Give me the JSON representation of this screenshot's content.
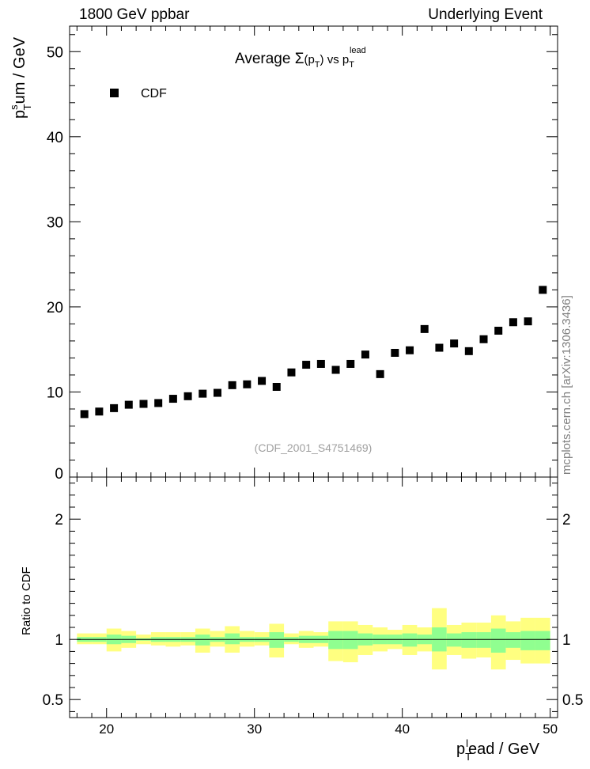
{
  "header": {
    "left": "1800 GeV ppbar",
    "right": "Underlying Event"
  },
  "side_credit": "mcplots.cern.ch [arXiv:1306.3436]",
  "colors": {
    "data_marker": "#000000",
    "band_outer": "#ffff80",
    "band_inner": "#90ff90",
    "watermark": "#a0a0a0"
  },
  "chart_data": [
    {
      "type": "scatter",
      "title": "Average Σ(p_T) vs p_T^lead",
      "title_parts": {
        "prefix": "Average ",
        "sigma": "Σ",
        "open": "(p",
        "sub": "T",
        "close": ") vs p",
        "sub2": "T",
        "sup2": "lead"
      },
      "ylabel_parts": {
        "p": "p",
        "sup": "s",
        "sub": "T",
        "rest": "um / GeV"
      },
      "watermark": "(CDF_2001_S4751469)",
      "legend": {
        "label": "CDF",
        "position": "top-left"
      },
      "xlim": [
        17.5,
        50.5
      ],
      "ylim": [
        0,
        53
      ],
      "yticks": [
        10,
        20,
        30,
        40,
        50
      ],
      "ytick_labels": [
        "10",
        "20",
        "30",
        "40",
        "50"
      ],
      "bottom_partial_label": "0",
      "series": [
        {
          "name": "CDF",
          "x": [
            18.5,
            19.5,
            20.5,
            21.5,
            22.5,
            23.5,
            24.5,
            25.5,
            26.5,
            27.5,
            28.5,
            29.5,
            30.5,
            31.5,
            32.5,
            33.5,
            34.5,
            35.5,
            36.5,
            37.5,
            38.5,
            39.5,
            40.5,
            41.5,
            42.5,
            43.5,
            44.5,
            45.5,
            46.5,
            47.5,
            48.5,
            49.5
          ],
          "y": [
            7.4,
            7.7,
            8.1,
            8.5,
            8.6,
            8.7,
            9.2,
            9.5,
            9.8,
            9.9,
            10.8,
            10.9,
            11.3,
            10.6,
            12.3,
            13.2,
            13.3,
            12.6,
            13.3,
            14.4,
            12.1,
            14.6,
            14.9,
            17.4,
            15.2,
            15.7,
            14.8,
            16.2,
            17.2,
            18.2,
            18.3,
            22.0
          ]
        }
      ]
    },
    {
      "type": "area",
      "ylabel": "Ratio to CDF",
      "xlabel_parts": {
        "p": "p",
        "sub": "T",
        "sup": "l",
        "rest": "ead / GeV"
      },
      "xlim": [
        17.5,
        50.5
      ],
      "ylim": [
        0.35,
        2.35
      ],
      "xticks": [
        20,
        30,
        40,
        50
      ],
      "xtick_labels": [
        "20",
        "30",
        "40",
        "50"
      ],
      "yticks": [
        0.5,
        1,
        2
      ],
      "ytick_labels": [
        "0.5",
        "1",
        "2"
      ],
      "reference_line": 1,
      "bins_low": [
        18,
        19,
        20,
        21,
        22,
        23,
        24,
        25,
        26,
        27,
        28,
        29,
        30,
        31,
        32,
        33,
        34,
        35,
        36,
        37,
        38,
        39,
        40,
        41,
        42,
        43,
        44,
        45,
        46,
        47,
        48,
        49
      ],
      "bin_width": 1,
      "bin_range": [
        18,
        50
      ],
      "outer_band": [
        [
          0.96,
          1.05
        ],
        [
          0.96,
          1.05
        ],
        [
          0.9,
          1.09
        ],
        [
          0.93,
          1.07
        ],
        [
          0.96,
          1.04
        ],
        [
          0.95,
          1.06
        ],
        [
          0.94,
          1.06
        ],
        [
          0.95,
          1.06
        ],
        [
          0.89,
          1.09
        ],
        [
          0.94,
          1.07
        ],
        [
          0.89,
          1.11
        ],
        [
          0.94,
          1.07
        ],
        [
          0.95,
          1.06
        ],
        [
          0.85,
          1.13
        ],
        [
          0.96,
          1.05
        ],
        [
          0.93,
          1.07
        ],
        [
          0.94,
          1.06
        ],
        [
          0.82,
          1.15
        ],
        [
          0.81,
          1.15
        ],
        [
          0.87,
          1.12
        ],
        [
          0.9,
          1.1
        ],
        [
          0.92,
          1.08
        ],
        [
          0.87,
          1.12
        ],
        [
          0.9,
          1.1
        ],
        [
          0.75,
          1.26
        ],
        [
          0.87,
          1.12
        ],
        [
          0.84,
          1.14
        ],
        [
          0.85,
          1.14
        ],
        [
          0.75,
          1.2
        ],
        [
          0.83,
          1.15
        ],
        [
          0.8,
          1.18
        ],
        [
          0.8,
          1.18
        ]
      ],
      "inner_band": [
        [
          0.98,
          1.02
        ],
        [
          0.98,
          1.02
        ],
        [
          0.96,
          1.04
        ],
        [
          0.97,
          1.03
        ],
        [
          0.99,
          1.01
        ],
        [
          0.98,
          1.02
        ],
        [
          0.98,
          1.02
        ],
        [
          0.98,
          1.02
        ],
        [
          0.95,
          1.04
        ],
        [
          0.98,
          1.02
        ],
        [
          0.96,
          1.05
        ],
        [
          0.98,
          1.02
        ],
        [
          0.98,
          1.02
        ],
        [
          0.93,
          1.06
        ],
        [
          0.98,
          1.02
        ],
        [
          0.97,
          1.03
        ],
        [
          0.97,
          1.03
        ],
        [
          0.92,
          1.07
        ],
        [
          0.92,
          1.07
        ],
        [
          0.95,
          1.05
        ],
        [
          0.96,
          1.04
        ],
        [
          0.96,
          1.04
        ],
        [
          0.94,
          1.05
        ],
        [
          0.96,
          1.04
        ],
        [
          0.9,
          1.1
        ],
        [
          0.94,
          1.05
        ],
        [
          0.93,
          1.06
        ],
        [
          0.93,
          1.06
        ],
        [
          0.89,
          1.09
        ],
        [
          0.93,
          1.06
        ],
        [
          0.91,
          1.07
        ],
        [
          0.91,
          1.07
        ]
      ]
    }
  ]
}
